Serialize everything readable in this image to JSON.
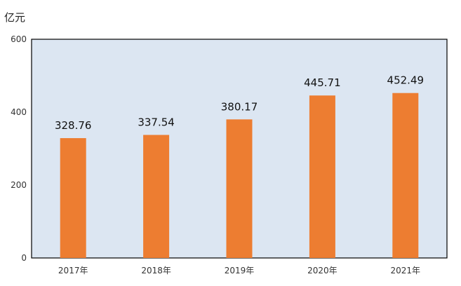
{
  "chart_data": {
    "type": "bar",
    "unit_label": "亿元",
    "categories": [
      "2017年",
      "2018年",
      "2019年",
      "2020年",
      "2021年"
    ],
    "values": [
      328.76,
      337.54,
      380.17,
      445.71,
      452.49
    ],
    "data_labels": [
      "328.76",
      "337.54",
      "380.17",
      "445.71",
      "452.49"
    ],
    "yticks": [
      "0",
      "200",
      "400",
      "600"
    ],
    "ylim": [
      0,
      600
    ],
    "xlabel": "",
    "ylabel": "",
    "grid": false,
    "legend": "none"
  },
  "colors": {
    "bar": "#ED7D31",
    "plot_background": "#DCE6F2",
    "plot_border": "#000000"
  }
}
